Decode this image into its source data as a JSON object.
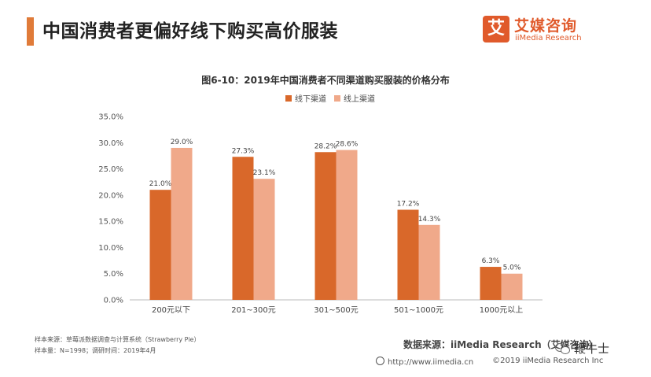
{
  "header": {
    "title": "中国消费者更偏好线下购买高价服装",
    "logo_cn": "艾媒咨询",
    "logo_en": "iiMedia Research",
    "logo_mark": "艾"
  },
  "chart_data": {
    "type": "bar",
    "title": "图6-10：2019年中国消费者不同渠道购买服装的价格分布",
    "categories": [
      "200元以下",
      "201~300元",
      "301~500元",
      "501~1000元",
      "1000元以上"
    ],
    "series": [
      {
        "name": "线下渠道",
        "values": [
          21.0,
          27.3,
          28.2,
          17.2,
          6.3
        ],
        "color": "#d9682a"
      },
      {
        "name": "线上渠道",
        "values": [
          29.0,
          23.1,
          28.6,
          14.3,
          5.0
        ],
        "color": "#f0a98a"
      }
    ],
    "value_labels": [
      [
        "21.0%",
        "27.3%",
        "28.2%",
        "17.2%",
        "6.3%"
      ],
      [
        "29.0%",
        "23.1%",
        "28.6%",
        "14.3%",
        "5.0%"
      ]
    ],
    "ylim": [
      0,
      35
    ],
    "yticks": [
      "0.0%",
      "5.0%",
      "10.0%",
      "15.0%",
      "20.0%",
      "25.0%",
      "30.0%",
      "35.0%"
    ],
    "legend_position": "top-center",
    "grid": false
  },
  "footnotes": {
    "sample_source": "样本来源：草莓派数据调查与计算系统（Strawberry Pie）",
    "sample_size": "样本量：N=1998；调研时间：2019年4月"
  },
  "source": "数据来源：iiMedia Research（艾媒咨询）",
  "footer": {
    "url": "http://www.iimedia.cn",
    "copyright": "©2019  iiMedia Research  Inc"
  },
  "watermark": "鞭牛士"
}
